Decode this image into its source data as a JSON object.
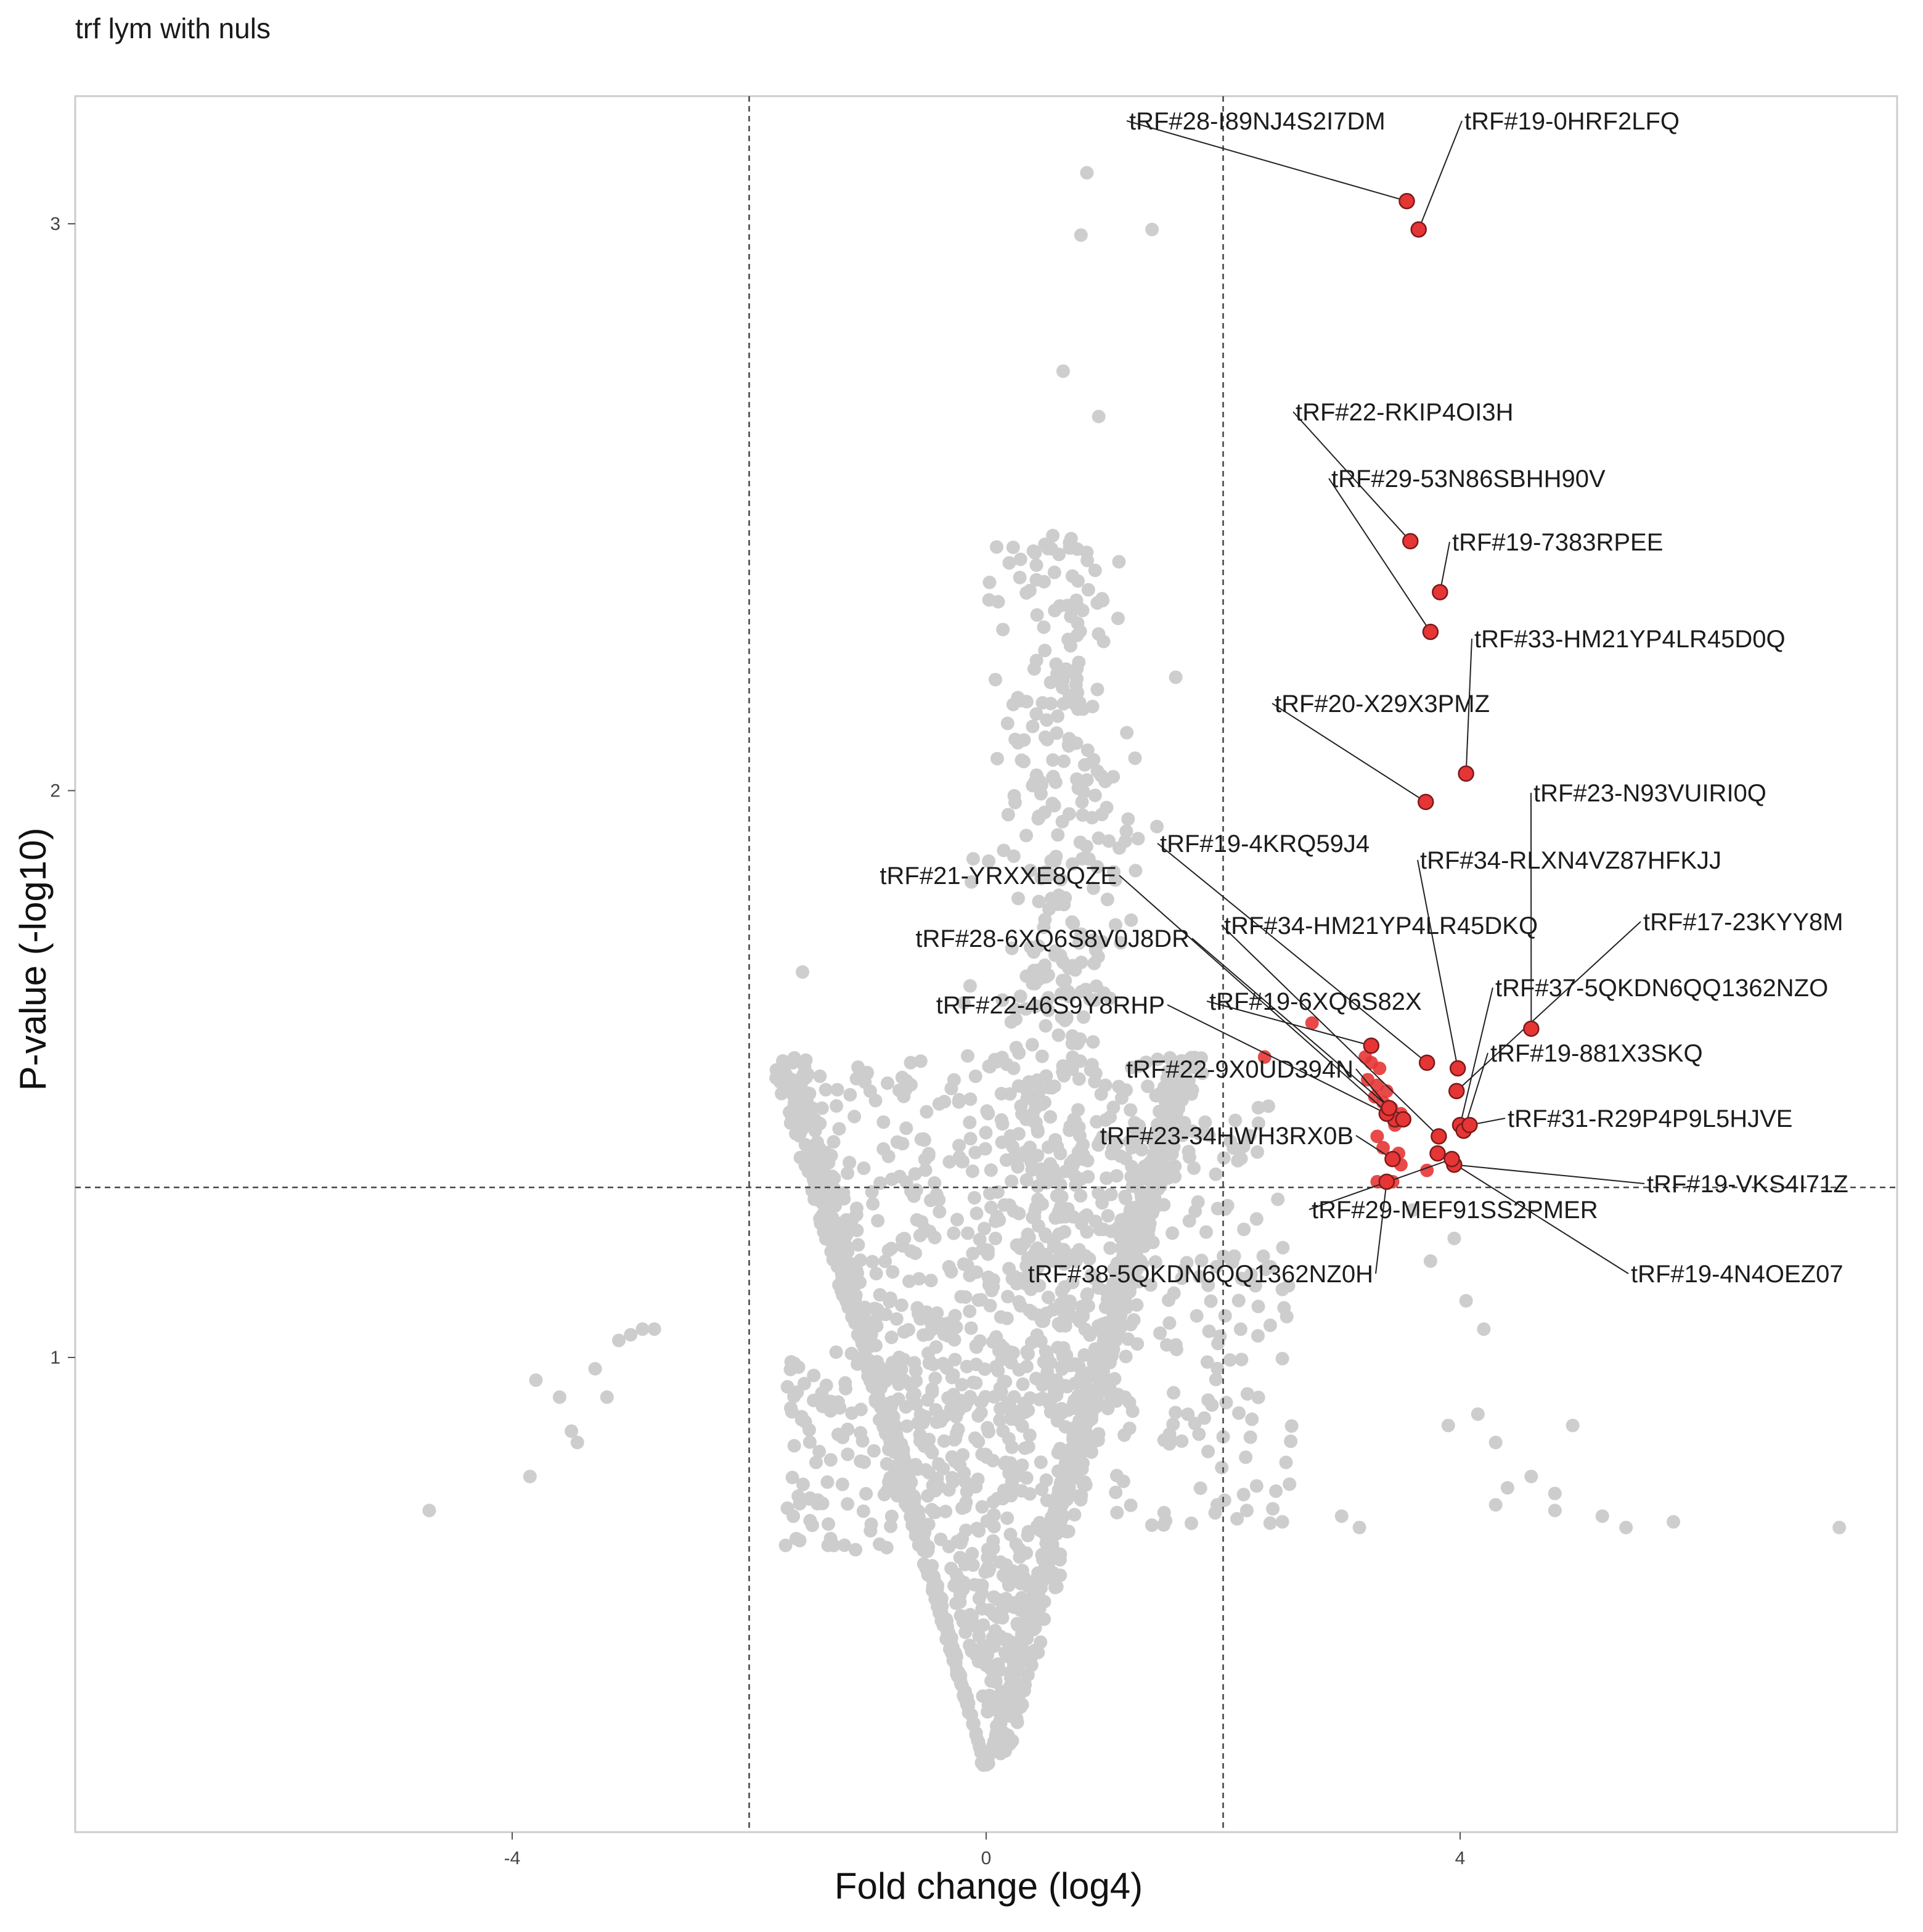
{
  "chart_data": {
    "type": "scatter",
    "title": "trf lym with nuls",
    "xlabel": "Fold change (log4)",
    "ylabel": "P-value (-log10)",
    "xlim": [
      -6.5,
      7.2
    ],
    "ylim": [
      0.2,
      3.22
    ],
    "x_ticks": [
      -4,
      0,
      4
    ],
    "x_tick_labels": [
      "-4",
      "0",
      "4"
    ],
    "y_ticks": [
      1,
      2,
      3
    ],
    "y_tick_labels": [
      "1",
      "2",
      "3"
    ],
    "grid": false,
    "legend": "none",
    "threshold_lines": {
      "vertical": [
        -2,
        2
      ],
      "horizontal": [
        1.3
      ]
    },
    "colors": {
      "nonsignificant": "#bdbdbd",
      "significant": "#e53535",
      "significant_outline": "#7a1a1a",
      "label_line": "#222222",
      "threshold_line": "#444444",
      "panel_border": "#cccccc"
    },
    "series": [
      {
        "role": "significant-labeled",
        "points": [
          {
            "label": "tRF#28-I89NJ4S2I7DM",
            "x": 3.55,
            "y": 3.04
          },
          {
            "label": "tRF#19-0HRF2LFQ",
            "x": 3.65,
            "y": 2.99
          },
          {
            "label": "tRF#22-RKIP4OI3H",
            "x": 3.58,
            "y": 2.44
          },
          {
            "label": "tRF#29-53N86SBHH90V",
            "x": 3.75,
            "y": 2.28
          },
          {
            "label": "tRF#19-7383RPEE",
            "x": 3.83,
            "y": 2.35
          },
          {
            "label": "tRF#33-HM21YP4LR45D0Q",
            "x": 4.05,
            "y": 2.03
          },
          {
            "label": "tRF#20-X29X3PMZ",
            "x": 3.71,
            "y": 1.98
          },
          {
            "label": "tRF#23-N93VUIRI0Q",
            "x": 4.6,
            "y": 1.58
          },
          {
            "label": "tRF#19-4KRQ59J4",
            "x": 3.72,
            "y": 1.52
          },
          {
            "label": "tRF#34-RLXN4VZ87HFKJJ",
            "x": 3.98,
            "y": 1.51
          },
          {
            "label": "tRF#21-YRXXE8QZE",
            "x": 3.45,
            "y": 1.42
          },
          {
            "label": "tRF#34-HM21YP4LR45DKQ",
            "x": 3.82,
            "y": 1.39
          },
          {
            "label": "tRF#17-23KYY8M",
            "x": 3.97,
            "y": 1.47
          },
          {
            "label": "tRF#28-6XQ6S8V0J8DR",
            "x": 3.52,
            "y": 1.42
          },
          {
            "label": "tRF#37-5QKDN6QQ1362NZO",
            "x": 4.0,
            "y": 1.41
          },
          {
            "label": "tRF#22-46S9Y8RHP",
            "x": 3.38,
            "y": 1.43
          },
          {
            "label": "tRF#19-6XQ6S82X",
            "x": 3.25,
            "y": 1.55
          },
          {
            "label": "tRF#19-881X3SKQ",
            "x": 4.03,
            "y": 1.4
          },
          {
            "label": "tRF#22-9X0UD394N",
            "x": 3.4,
            "y": 1.44
          },
          {
            "label": "tRF#31-R29P4P9L5HJVE",
            "x": 4.08,
            "y": 1.41
          },
          {
            "label": "tRF#23-34HWH3RX0B",
            "x": 3.43,
            "y": 1.35
          },
          {
            "label": "tRF#19-VKS4I71Z",
            "x": 3.95,
            "y": 1.34
          },
          {
            "label": "tRF#29-MEF91SS2PMER",
            "x": 3.93,
            "y": 1.35
          },
          {
            "label": "tRF#38-5QKDN6QQ1362NZ0H",
            "x": 3.38,
            "y": 1.31
          },
          {
            "label": "tRF#19-4N4OEZ07",
            "x": 3.81,
            "y": 1.36
          }
        ]
      },
      {
        "role": "significant-unlabeled",
        "points": [
          [
            2.75,
            1.59
          ],
          [
            2.35,
            1.53
          ],
          [
            3.2,
            1.53
          ],
          [
            3.25,
            1.52
          ],
          [
            3.32,
            1.51
          ],
          [
            3.22,
            1.49
          ],
          [
            3.3,
            1.48
          ],
          [
            3.38,
            1.47
          ],
          [
            3.28,
            1.46
          ],
          [
            3.35,
            1.45
          ],
          [
            3.42,
            1.44
          ],
          [
            3.5,
            1.43
          ],
          [
            3.45,
            1.41
          ],
          [
            3.3,
            1.39
          ],
          [
            3.35,
            1.37
          ],
          [
            3.48,
            1.36
          ],
          [
            3.5,
            1.34
          ],
          [
            3.3,
            1.31
          ],
          [
            3.43,
            1.31
          ],
          [
            3.72,
            1.33
          ]
        ]
      }
    ],
    "background_cloud": {
      "role": "non-significant",
      "description_points": "volcano-shaped grey cloud centred near x=0, widening with increasing y",
      "outliers": [
        [
          -4.7,
          0.73
        ],
        [
          -3.85,
          0.79
        ],
        [
          -3.8,
          0.96
        ],
        [
          -3.6,
          0.93
        ],
        [
          -3.5,
          0.87
        ],
        [
          -3.45,
          0.85
        ],
        [
          -3.3,
          0.98
        ],
        [
          -3.2,
          0.93
        ],
        [
          -3.1,
          1.03
        ],
        [
          -3.0,
          1.04
        ],
        [
          -2.9,
          1.05
        ],
        [
          -2.8,
          1.05
        ],
        [
          -1.55,
          1.68
        ],
        [
          -1.2,
          1.28
        ],
        [
          -1.1,
          1.11
        ],
        [
          -0.8,
          0.98
        ],
        [
          -0.9,
          0.89
        ],
        [
          -0.75,
          1.38
        ],
        [
          0.85,
          3.09
        ],
        [
          0.8,
          2.98
        ],
        [
          1.4,
          2.99
        ],
        [
          0.65,
          2.74
        ],
        [
          0.95,
          2.66
        ],
        [
          1.6,
          2.2
        ],
        [
          2.0,
          0.86
        ],
        [
          1.95,
          0.74
        ],
        [
          2.2,
          0.73
        ],
        [
          2.5,
          0.71
        ],
        [
          3.0,
          0.72
        ],
        [
          3.15,
          0.7
        ],
        [
          2.5,
          1.12
        ],
        [
          2.4,
          1.16
        ],
        [
          3.75,
          1.17
        ],
        [
          3.95,
          1.21
        ],
        [
          4.05,
          1.1
        ],
        [
          4.2,
          1.05
        ],
        [
          4.15,
          0.9
        ],
        [
          3.9,
          0.88
        ],
        [
          4.3,
          0.85
        ],
        [
          4.6,
          0.79
        ],
        [
          4.95,
          0.88
        ],
        [
          4.4,
          0.77
        ],
        [
          4.8,
          0.76
        ],
        [
          4.3,
          0.74
        ],
        [
          4.8,
          0.73
        ],
        [
          5.2,
          0.72
        ],
        [
          5.4,
          0.7
        ],
        [
          5.8,
          0.71
        ],
        [
          7.2,
          0.7
        ],
        [
          3.6,
          1.26
        ]
      ]
    }
  }
}
